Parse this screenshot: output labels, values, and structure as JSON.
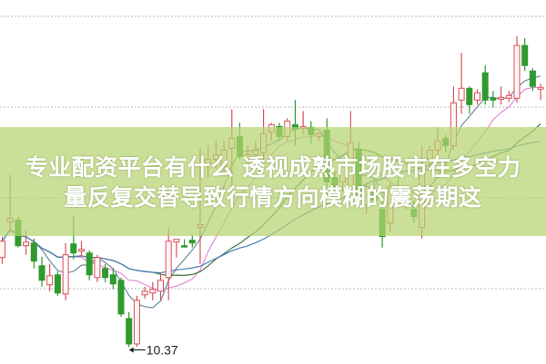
{
  "headline": {
    "line1": "专业配资平台有什么 透视成熟市场股市在多空力",
    "line2": "量反复交替导致行情方向模糊的震荡期这"
  },
  "chart_data": {
    "type": "candlestick",
    "ylim": [
      10.0,
      18.0
    ],
    "grid": true,
    "colors": {
      "up": "#d9505a",
      "down": "#2f9a2f",
      "banner": "#b6d470",
      "ma_fast": "#6b8c9c",
      "ma_mid": "#e48ad8",
      "ma_slow": "#3d7a3d",
      "ma_long": "#4a7db8"
    },
    "moving_average_windows": [
      5,
      10,
      20,
      30
    ],
    "low_annotation": {
      "label": "10.37",
      "value": 10.37,
      "index": 16
    },
    "candles": [
      [
        12.34,
        12.8,
        12.2,
        12.7
      ],
      [
        13.12,
        14.16,
        12.9,
        13.2
      ],
      [
        13.16,
        13.24,
        12.56,
        12.6
      ],
      [
        12.6,
        12.94,
        12.4,
        12.68
      ],
      [
        12.66,
        12.76,
        12.1,
        12.26
      ],
      [
        12.16,
        12.36,
        11.7,
        11.84
      ],
      [
        11.74,
        12.2,
        11.6,
        11.94
      ],
      [
        11.96,
        12.04,
        11.5,
        11.56
      ],
      [
        11.54,
        12.66,
        11.4,
        12.4
      ],
      [
        12.64,
        13.26,
        12.3,
        12.44
      ],
      [
        12.48,
        12.7,
        12.36,
        12.52
      ],
      [
        12.44,
        12.5,
        11.84,
        11.96
      ],
      [
        11.9,
        12.4,
        11.8,
        12.34
      ],
      [
        12.1,
        12.2,
        11.8,
        11.9
      ],
      [
        11.96,
        12.1,
        11.64,
        11.76
      ],
      [
        11.84,
        11.9,
        11.04,
        11.1
      ],
      [
        11.0,
        11.14,
        10.37,
        10.44
      ],
      [
        10.44,
        11.5,
        10.38,
        11.4
      ],
      [
        11.52,
        11.7,
        11.44,
        11.6
      ],
      [
        11.56,
        11.8,
        11.4,
        11.64
      ],
      [
        11.6,
        12.0,
        11.4,
        11.84
      ],
      [
        11.9,
        13.0,
        11.4,
        12.7
      ],
      [
        12.68,
        12.74,
        12.34,
        12.74
      ],
      [
        12.6,
        12.74,
        12.56,
        12.58
      ],
      [
        12.72,
        12.84,
        12.56,
        12.66
      ],
      [
        13.0,
        14.74,
        12.2,
        13.06
      ],
      [
        14.4,
        14.8,
        14.1,
        14.5
      ],
      [
        14.5,
        14.9,
        14.3,
        14.6
      ],
      [
        14.34,
        14.9,
        14.1,
        14.7
      ],
      [
        14.74,
        15.6,
        13.86,
        14.96
      ],
      [
        15.0,
        15.3,
        14.5,
        14.56
      ],
      [
        14.5,
        14.8,
        14.3,
        14.6
      ],
      [
        14.6,
        14.9,
        14.4,
        14.7
      ],
      [
        14.64,
        15.6,
        14.44,
        15.06
      ],
      [
        15.1,
        15.3,
        14.9,
        15.26
      ],
      [
        15.22,
        15.3,
        14.9,
        15.0
      ],
      [
        15.0,
        15.4,
        14.9,
        15.34
      ],
      [
        15.26,
        15.8,
        14.8,
        15.16
      ],
      [
        15.18,
        15.56,
        15.04,
        15.22
      ],
      [
        15.2,
        15.34,
        14.84,
        15.04
      ],
      [
        15.0,
        15.1,
        14.9,
        15.06
      ],
      [
        15.14,
        15.4,
        13.7,
        14.0
      ],
      [
        14.1,
        14.24,
        13.7,
        13.9
      ],
      [
        14.0,
        14.4,
        13.8,
        14.34
      ],
      [
        13.74,
        15.56,
        13.6,
        14.86
      ],
      [
        14.7,
        14.9,
        13.5,
        13.7
      ],
      [
        13.5,
        14.0,
        13.3,
        13.9
      ],
      [
        13.8,
        14.0,
        13.5,
        13.6
      ],
      [
        13.4,
        13.7,
        12.56,
        12.8
      ],
      [
        13.1,
        14.0,
        12.9,
        13.9
      ],
      [
        13.9,
        14.1,
        13.6,
        13.7
      ],
      [
        13.7,
        13.9,
        13.4,
        13.6
      ],
      [
        13.4,
        13.6,
        13.1,
        13.24
      ],
      [
        13.0,
        14.8,
        12.76,
        14.2
      ],
      [
        14.5,
        14.8,
        14.3,
        14.7
      ],
      [
        14.7,
        15.2,
        14.6,
        14.9
      ],
      [
        14.96,
        15.04,
        14.64,
        14.8
      ],
      [
        14.8,
        16.1,
        14.7,
        15.74
      ],
      [
        15.8,
        16.84,
        15.5,
        16.06
      ],
      [
        16.06,
        16.1,
        15.5,
        15.7
      ],
      [
        15.8,
        16.04,
        15.7,
        15.96
      ],
      [
        16.4,
        16.56,
        15.7,
        15.8
      ],
      [
        15.84,
        16.0,
        15.64,
        15.8
      ],
      [
        15.82,
        16.1,
        15.7,
        15.86
      ],
      [
        15.84,
        16.0,
        15.76,
        15.9
      ],
      [
        15.84,
        17.2,
        15.74,
        17.0
      ],
      [
        17.0,
        17.16,
        16.44,
        16.56
      ],
      [
        16.44,
        16.5,
        16.0,
        16.1
      ],
      [
        16.04,
        16.16,
        15.8,
        16.08
      ]
    ]
  }
}
